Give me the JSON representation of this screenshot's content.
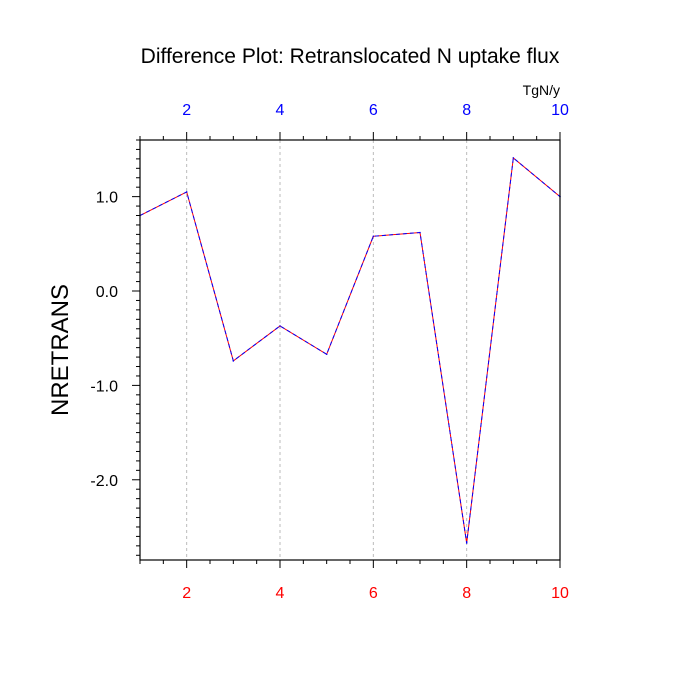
{
  "chart_data": {
    "type": "line",
    "title": "Difference Plot: Retranslocated N uptake flux",
    "ylabel": "NRETRANS",
    "xlabel": "",
    "units": "TgN/y",
    "xlim": [
      1,
      10
    ],
    "ylim": [
      -2.85,
      1.6
    ],
    "xticks_bottom": [
      2,
      4,
      6,
      8,
      10
    ],
    "xticks_top": [
      2,
      4,
      6,
      8,
      10
    ],
    "yticks_major": [
      1.0,
      0.0,
      -1.0,
      -2.0
    ],
    "ytick_labels": [
      "1.0",
      "0.0",
      "-1.0",
      "-2.0"
    ],
    "x": [
      1,
      2,
      3,
      4,
      5,
      6,
      7,
      8,
      9,
      10
    ],
    "series": [
      {
        "values": [
          0.8,
          1.05,
          -0.74,
          -0.37,
          -0.67,
          0.58,
          0.62,
          -2.67,
          1.41,
          1.0
        ],
        "colors": [
          "#ff0000",
          "#0000ff"
        ]
      }
    ],
    "grid": "vertical dashed at major x ticks",
    "colors": {
      "bottom_axis": "#ff0000",
      "top_axis": "#0000ff",
      "grid": "#bbbbbb"
    }
  }
}
